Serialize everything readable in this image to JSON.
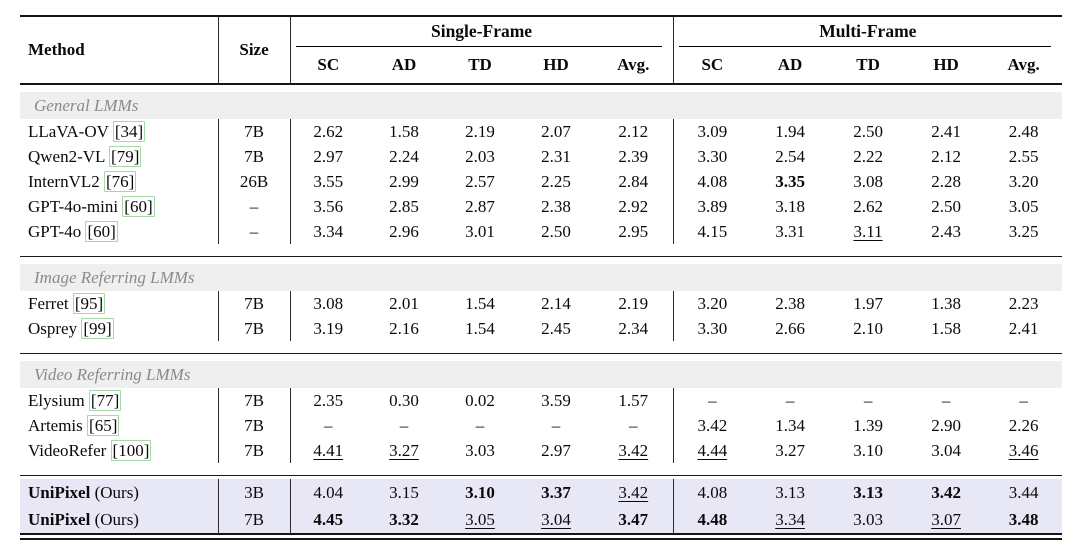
{
  "table": {
    "headers": {
      "method": "Method",
      "size": "Size",
      "groups": [
        {
          "label": "Single-Frame",
          "cols": [
            "SC",
            "AD",
            "TD",
            "HD",
            "Avg."
          ]
        },
        {
          "label": "Multi-Frame",
          "cols": [
            "SC",
            "AD",
            "TD",
            "HD",
            "Avg."
          ]
        }
      ]
    },
    "sections": [
      {
        "label": "General LMMs",
        "rows": [
          {
            "method": "LLaVA-OV",
            "cite": "[34]",
            "size": "7B",
            "cells": [
              "2.62",
              "1.58",
              "2.19",
              "2.07",
              "2.12",
              "3.09",
              "1.94",
              "2.50",
              "2.41",
              "2.48"
            ]
          },
          {
            "method": "Qwen2-VL",
            "cite": "[79]",
            "size": "7B",
            "cells": [
              "2.97",
              "2.24",
              "2.03",
              "2.31",
              "2.39",
              "3.30",
              "2.54",
              "2.22",
              "2.12",
              "2.55"
            ]
          },
          {
            "method": "InternVL2",
            "cite": "[76]",
            "size": "26B",
            "cells": [
              "3.55",
              "2.99",
              "2.57",
              "2.25",
              "2.84",
              "4.08",
              {
                "v": "3.35",
                "s": "b"
              },
              "3.08",
              "2.28",
              "3.20"
            ]
          },
          {
            "method": "GPT-4o-mini",
            "cite": "[60]",
            "size": "–",
            "cells": [
              "3.56",
              "2.85",
              "2.87",
              "2.38",
              "2.92",
              "3.89",
              "3.18",
              "2.62",
              "2.50",
              "3.05"
            ]
          },
          {
            "method": "GPT-4o",
            "cite": "[60]",
            "size": "–",
            "cells": [
              "3.34",
              "2.96",
              "3.01",
              "2.50",
              "2.95",
              "4.15",
              "3.31",
              {
                "v": "3.11",
                "s": "u"
              },
              "2.43",
              "3.25"
            ]
          }
        ]
      },
      {
        "label": "Image Referring LMMs",
        "rows": [
          {
            "method": "Ferret",
            "cite": "[95]",
            "size": "7B",
            "cells": [
              "3.08",
              "2.01",
              "1.54",
              "2.14",
              "2.19",
              "3.20",
              "2.38",
              "1.97",
              "1.38",
              "2.23"
            ]
          },
          {
            "method": "Osprey",
            "cite": "[99]",
            "size": "7B",
            "cells": [
              "3.19",
              "2.16",
              "1.54",
              "2.45",
              "2.34",
              "3.30",
              "2.66",
              "2.10",
              "1.58",
              "2.41"
            ]
          }
        ]
      },
      {
        "label": "Video Referring LMMs",
        "rows": [
          {
            "method": "Elysium",
            "cite": "[77]",
            "size": "7B",
            "cells": [
              "2.35",
              "0.30",
              "0.02",
              "3.59",
              "1.57",
              "–",
              "–",
              "–",
              "–",
              "–"
            ]
          },
          {
            "method": "Artemis",
            "cite": "[65]",
            "size": "7B",
            "cells": [
              "–",
              "–",
              "–",
              "–",
              "–",
              "3.42",
              "1.34",
              "1.39",
              "2.90",
              "2.26"
            ]
          },
          {
            "method": "VideoRefer",
            "cite": "[100]",
            "size": "7B",
            "cells": [
              {
                "v": "4.41",
                "s": "u"
              },
              {
                "v": "3.27",
                "s": "u"
              },
              "3.03",
              "2.97",
              {
                "v": "3.42",
                "s": "u"
              },
              {
                "v": "4.44",
                "s": "u"
              },
              "3.27",
              "3.10",
              "3.04",
              {
                "v": "3.46",
                "s": "u"
              }
            ]
          }
        ]
      }
    ],
    "highlight_rows": [
      {
        "method_bold": "UniPixel",
        "method_rest": " (Ours)",
        "size": "3B",
        "cells": [
          "4.04",
          "3.15",
          {
            "v": "3.10",
            "s": "b"
          },
          {
            "v": "3.37",
            "s": "b"
          },
          {
            "v": "3.42",
            "s": "u"
          },
          "4.08",
          "3.13",
          {
            "v": "3.13",
            "s": "b"
          },
          {
            "v": "3.42",
            "s": "b"
          },
          "3.44"
        ]
      },
      {
        "method_bold": "UniPixel",
        "method_rest": " (Ours)",
        "size": "7B",
        "cells": [
          {
            "v": "4.45",
            "s": "b"
          },
          {
            "v": "3.32",
            "s": "b"
          },
          {
            "v": "3.05",
            "s": "u"
          },
          {
            "v": "3.04",
            "s": "u"
          },
          {
            "v": "3.47",
            "s": "b"
          },
          {
            "v": "4.48",
            "s": "b"
          },
          {
            "v": "3.34",
            "s": "u"
          },
          "3.03",
          {
            "v": "3.07",
            "s": "u"
          },
          {
            "v": "3.48",
            "s": "b"
          }
        ]
      }
    ],
    "colors": {
      "section_band_bg": "#efeff0",
      "section_band_text": "#8a8a8a",
      "highlight_bg": "#e8e7f6",
      "citation_box": "#a4d8a4",
      "rule_color": "#1a1a1a"
    }
  }
}
